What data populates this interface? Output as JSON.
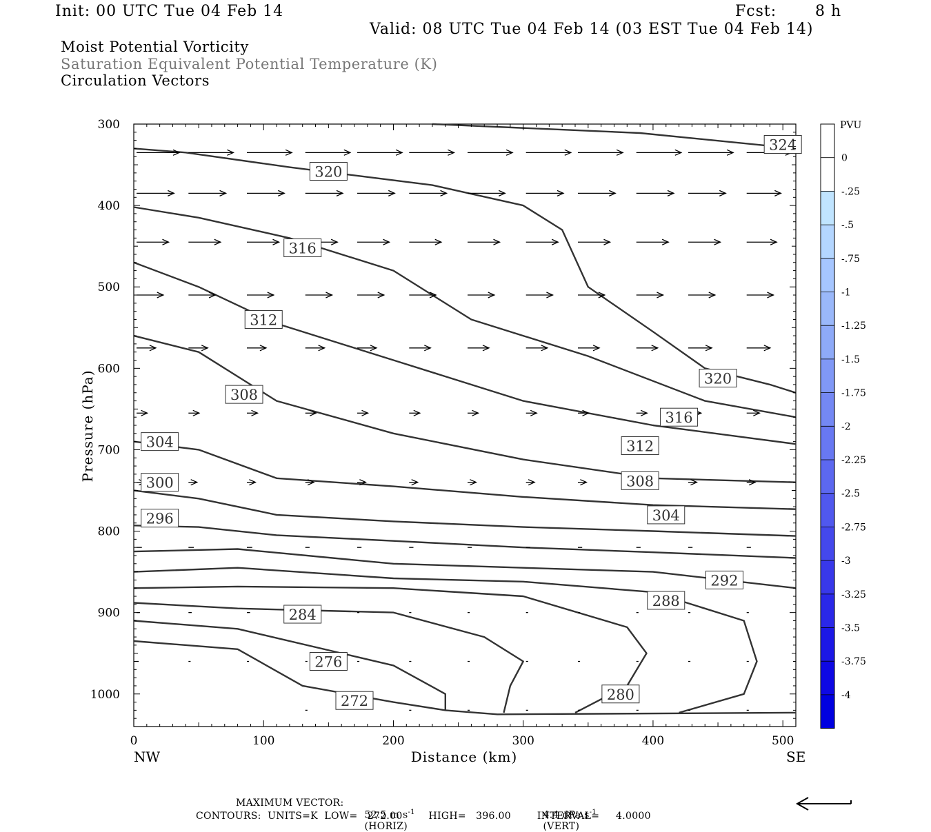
{
  "header": {
    "init": "Init: 00 UTC Tue 04 Feb 14",
    "fcst_label": "Fcst:",
    "fcst_value": "8 h",
    "valid": "Valid: 08 UTC Tue 04 Feb 14 (03 EST Tue 04 Feb 14)"
  },
  "fields": {
    "field1": "Moist Potential Vorticity",
    "field2": "Saturation Equivalent Potential Temperature (K)",
    "field3": "Circulation Vectors"
  },
  "footer": {
    "max_vector_label": "MAXIMUM VECTOR:",
    "horiz_value": "52.5 m s",
    "horiz_unit": "(HORIZ)",
    "vert_value": "4.4 dPa s",
    "vert_unit": "(VERT)",
    "exponent": "-1",
    "contours": "CONTOURS:  UNITS=K  LOW=   272.00        HIGH=   396.00        INTERVAL=     4.0000"
  },
  "chart_data": {
    "type": "contour",
    "xlabel": "Distance (km)",
    "ylabel": "Pressure (hPa)",
    "xlim": [
      0,
      510
    ],
    "ylim": [
      1040,
      300
    ],
    "x_ticks": [
      0,
      100,
      200,
      300,
      400,
      500
    ],
    "y_ticks": [
      300,
      400,
      500,
      600,
      700,
      800,
      900,
      1000
    ],
    "x_endpoint_labels": {
      "left": "NW",
      "right": "SE"
    },
    "colorbar": {
      "title": "PVU",
      "ticks": [
        "0",
        "-.25",
        "-.5",
        "-.75",
        "-1",
        "-1.25",
        "-1.5",
        "-1.75",
        "-2",
        "-2.25",
        "-2.5",
        "-2.75",
        "-3",
        "-3.25",
        "-3.5",
        "-3.75",
        "-4"
      ],
      "colors": [
        "#ffffff",
        "#ffffff",
        "#c0e4ff",
        "#b4d6ff",
        "#a6c6ff",
        "#9ab8fa",
        "#8eaaf8",
        "#8098f6",
        "#7488f4",
        "#6878f2",
        "#5c68f0",
        "#5058ee",
        "#4448ec",
        "#3838ea",
        "#2a28e8",
        "#1c18e6",
        "#0e08e4",
        "#0000e0"
      ]
    },
    "contour_labels": [
      "324",
      "320",
      "320",
      "316",
      "316",
      "312",
      "312",
      "308",
      "308",
      "304",
      "304",
      "300",
      "296",
      "292",
      "288",
      "284",
      "280",
      "276",
      "272"
    ],
    "contour_lines": [
      {
        "value": 324,
        "points": [
          [
            230,
            300
          ],
          [
            390,
            311
          ],
          [
            510,
            330
          ]
        ]
      },
      {
        "value": 320,
        "points": [
          [
            0,
            330
          ],
          [
            40,
            335
          ],
          [
            120,
            353
          ],
          [
            230,
            375
          ],
          [
            300,
            400
          ],
          [
            330,
            430
          ],
          [
            340,
            465
          ],
          [
            350,
            500
          ],
          [
            400,
            555
          ],
          [
            440,
            600
          ],
          [
            490,
            620
          ],
          [
            510,
            630
          ]
        ]
      },
      {
        "value": 316,
        "points": [
          [
            0,
            402
          ],
          [
            50,
            415
          ],
          [
            120,
            440
          ],
          [
            200,
            480
          ],
          [
            260,
            540
          ],
          [
            350,
            585
          ],
          [
            440,
            640
          ],
          [
            510,
            660
          ]
        ]
      },
      {
        "value": 312,
        "points": [
          [
            0,
            470
          ],
          [
            50,
            500
          ],
          [
            110,
            545
          ],
          [
            200,
            590
          ],
          [
            300,
            640
          ],
          [
            400,
            670
          ],
          [
            510,
            693
          ]
        ]
      },
      {
        "value": 308,
        "points": [
          [
            0,
            560
          ],
          [
            50,
            580
          ],
          [
            110,
            640
          ],
          [
            200,
            680
          ],
          [
            300,
            712
          ],
          [
            400,
            735
          ],
          [
            510,
            740
          ]
        ]
      },
      {
        "value": 304,
        "points": [
          [
            0,
            690
          ],
          [
            50,
            700
          ],
          [
            110,
            735
          ],
          [
            200,
            745
          ],
          [
            300,
            758
          ],
          [
            400,
            768
          ],
          [
            510,
            773
          ]
        ]
      },
      {
        "value": 300,
        "points": [
          [
            0,
            750
          ],
          [
            50,
            760
          ],
          [
            110,
            780
          ],
          [
            200,
            788
          ],
          [
            300,
            795
          ],
          [
            400,
            800
          ],
          [
            510,
            806
          ]
        ]
      },
      {
        "value": 296,
        "points": [
          [
            0,
            793
          ],
          [
            50,
            795
          ],
          [
            110,
            805
          ],
          [
            200,
            812
          ],
          [
            300,
            820
          ],
          [
            400,
            826
          ],
          [
            510,
            833
          ]
        ]
      },
      {
        "value": 292,
        "points": [
          [
            0,
            825
          ],
          [
            80,
            822
          ],
          [
            200,
            840
          ],
          [
            300,
            845
          ],
          [
            400,
            850
          ],
          [
            510,
            870
          ]
        ]
      },
      {
        "value": 288,
        "points": [
          [
            0,
            850
          ],
          [
            80,
            845
          ],
          [
            200,
            858
          ],
          [
            300,
            862
          ],
          [
            400,
            875
          ],
          [
            470,
            910
          ],
          [
            480,
            960
          ],
          [
            470,
            1000
          ],
          [
            420,
            1023
          ]
        ]
      },
      {
        "value": 284,
        "points": [
          [
            0,
            870
          ],
          [
            80,
            868
          ],
          [
            200,
            870
          ],
          [
            300,
            880
          ],
          [
            380,
            918
          ],
          [
            395,
            950
          ],
          [
            380,
            990
          ],
          [
            340,
            1023
          ]
        ]
      },
      {
        "value": 280,
        "points": [
          [
            0,
            888
          ],
          [
            80,
            895
          ],
          [
            200,
            900
          ],
          [
            270,
            930
          ],
          [
            300,
            960
          ],
          [
            290,
            990
          ],
          [
            285,
            1023
          ]
        ]
      },
      {
        "value": 276,
        "points": [
          [
            0,
            910
          ],
          [
            80,
            920
          ],
          [
            200,
            965
          ],
          [
            240,
            1000
          ],
          [
            240,
            1020
          ]
        ]
      },
      {
        "value": 272,
        "points": [
          [
            0,
            935
          ],
          [
            80,
            945
          ],
          [
            130,
            990
          ],
          [
            200,
            1010
          ],
          [
            240,
            1020
          ],
          [
            280,
            1025
          ],
          [
            510,
            1023
          ]
        ]
      }
    ],
    "vector_rows": [
      {
        "pressure": 335,
        "vectors": [
          [
            0,
            40
          ],
          [
            40,
            42
          ],
          [
            85,
            42
          ],
          [
            130,
            42
          ],
          [
            170,
            42
          ],
          [
            210,
            42
          ],
          [
            255,
            42
          ],
          [
            300,
            42
          ],
          [
            340,
            42
          ],
          [
            385,
            42
          ],
          [
            425,
            42
          ],
          [
            470,
            42
          ]
        ]
      },
      {
        "pressure": 385,
        "vectors": [
          [
            0,
            35
          ],
          [
            40,
            35
          ],
          [
            85,
            35
          ],
          [
            130,
            35
          ],
          [
            170,
            35
          ],
          [
            210,
            35
          ],
          [
            255,
            35
          ],
          [
            300,
            35
          ],
          [
            340,
            35
          ],
          [
            385,
            35
          ],
          [
            425,
            35
          ],
          [
            470,
            32
          ]
        ]
      },
      {
        "pressure": 445,
        "vectors": [
          [
            0,
            30
          ],
          [
            40,
            30
          ],
          [
            85,
            30
          ],
          [
            130,
            30
          ],
          [
            170,
            30
          ],
          [
            210,
            30
          ],
          [
            255,
            30
          ],
          [
            300,
            30
          ],
          [
            340,
            30
          ],
          [
            385,
            30
          ],
          [
            425,
            30
          ],
          [
            470,
            28
          ]
        ]
      },
      {
        "pressure": 510,
        "vectors": [
          [
            0,
            25
          ],
          [
            40,
            25
          ],
          [
            85,
            25
          ],
          [
            130,
            25
          ],
          [
            170,
            25
          ],
          [
            210,
            25
          ],
          [
            255,
            25
          ],
          [
            300,
            25
          ],
          [
            340,
            25
          ],
          [
            385,
            25
          ],
          [
            425,
            25
          ],
          [
            470,
            25
          ]
        ]
      },
      {
        "pressure": 575,
        "vectors": [
          [
            0,
            18
          ],
          [
            40,
            18
          ],
          [
            85,
            18
          ],
          [
            130,
            18
          ],
          [
            170,
            18
          ],
          [
            210,
            20
          ],
          [
            255,
            20
          ],
          [
            300,
            20
          ],
          [
            340,
            20
          ],
          [
            385,
            20
          ],
          [
            425,
            22
          ],
          [
            470,
            22
          ]
        ]
      },
      {
        "pressure": 655,
        "vectors": [
          [
            0,
            10
          ],
          [
            40,
            10
          ],
          [
            85,
            10
          ],
          [
            130,
            10
          ],
          [
            170,
            10
          ],
          [
            210,
            10
          ],
          [
            255,
            10
          ],
          [
            300,
            10
          ],
          [
            340,
            10
          ],
          [
            385,
            10
          ],
          [
            425,
            12
          ],
          [
            470,
            12
          ]
        ]
      },
      {
        "pressure": 740,
        "vectors": [
          [
            0,
            8
          ],
          [
            40,
            8
          ],
          [
            85,
            8
          ],
          [
            130,
            8
          ],
          [
            170,
            8
          ],
          [
            210,
            8
          ],
          [
            255,
            8
          ],
          [
            300,
            8
          ],
          [
            340,
            8
          ],
          [
            385,
            8
          ],
          [
            425,
            8
          ],
          [
            470,
            8
          ]
        ]
      },
      {
        "pressure": 820,
        "vectors": [
          [
            0,
            5
          ],
          [
            40,
            5
          ],
          [
            85,
            5
          ],
          [
            130,
            4
          ],
          [
            170,
            4
          ],
          [
            210,
            4
          ],
          [
            255,
            4
          ],
          [
            300,
            4
          ],
          [
            340,
            4
          ],
          [
            385,
            4
          ],
          [
            425,
            4
          ],
          [
            470,
            4
          ]
        ]
      },
      {
        "pressure": 900,
        "vectors": [
          [
            0,
            3
          ],
          [
            40,
            3
          ],
          [
            85,
            3
          ],
          [
            130,
            2
          ],
          [
            170,
            2
          ],
          [
            210,
            2
          ],
          [
            255,
            2
          ],
          [
            300,
            2
          ],
          [
            340,
            2
          ],
          [
            385,
            2
          ],
          [
            425,
            2
          ],
          [
            470,
            2
          ]
        ]
      },
      {
        "pressure": 960,
        "vectors": [
          [
            0,
            2
          ],
          [
            40,
            2
          ],
          [
            85,
            2
          ],
          [
            130,
            2
          ],
          [
            170,
            2
          ],
          [
            210,
            2
          ],
          [
            255,
            2
          ],
          [
            300,
            2
          ],
          [
            340,
            2
          ],
          [
            385,
            2
          ],
          [
            425,
            2
          ],
          [
            470,
            2
          ]
        ]
      },
      {
        "pressure": 1020,
        "vectors": [
          [
            130,
            2
          ],
          [
            210,
            2
          ],
          [
            255,
            2
          ],
          [
            300,
            2
          ],
          [
            340,
            2
          ],
          [
            385,
            2
          ],
          [
            425,
            2
          ],
          [
            470,
            2
          ]
        ]
      }
    ]
  }
}
